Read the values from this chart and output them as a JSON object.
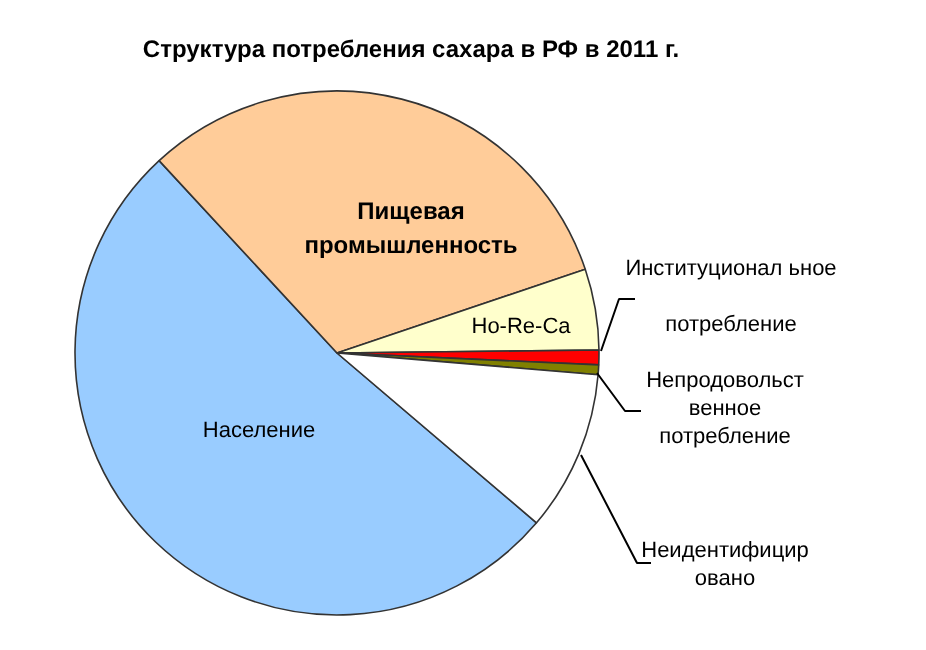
{
  "chart_data": {
    "type": "pie",
    "title": "Структура потребления сахара в РФ в 2011 г.",
    "categories": [
      "Население",
      "Пищевая\nпромышленность",
      "Ho-Re-Ca",
      "Институционал ьное\nпотребление",
      "Непродовольст\nвенное\nпотребление",
      "Неидентифицир\nовано"
    ],
    "values": [
      51.9,
      31.7,
      5.0,
      0.9,
      0.6,
      9.9
    ],
    "colors": [
      "#99ccff",
      "#ffcc99",
      "#ffffcc",
      "#ff0000",
      "#808000",
      "#ffffff"
    ]
  }
}
